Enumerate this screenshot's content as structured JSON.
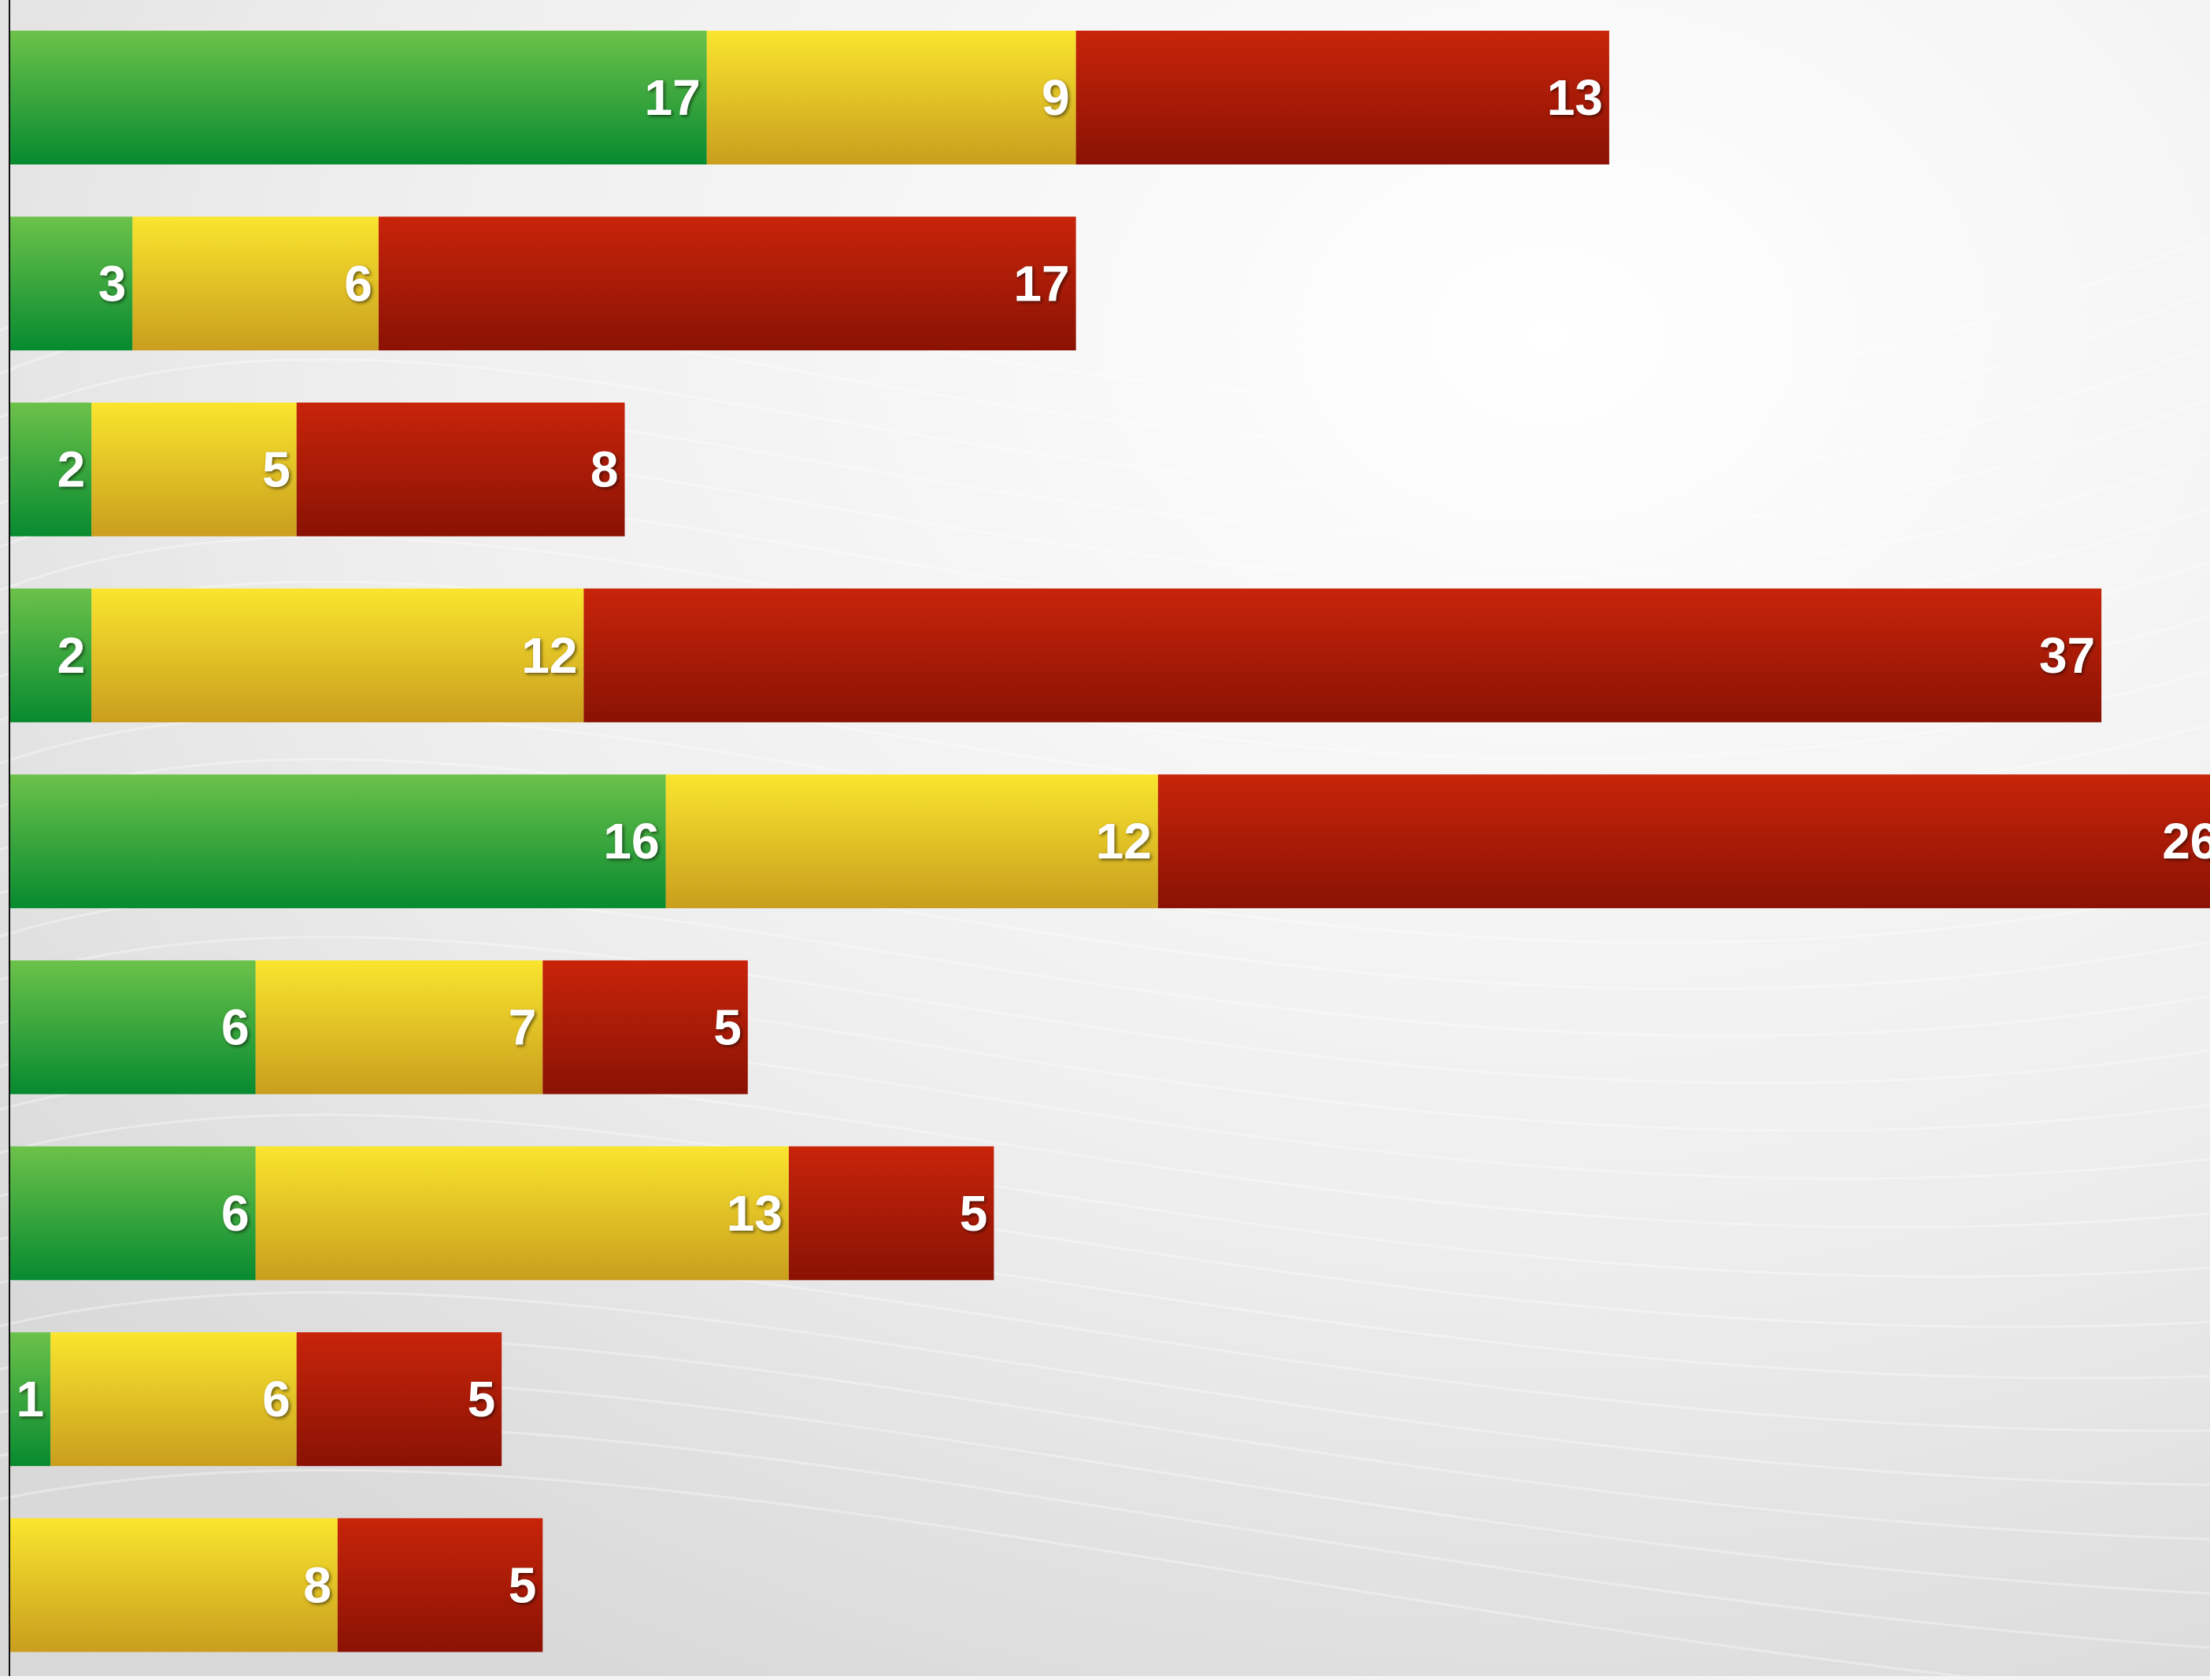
{
  "chart_data": {
    "type": "bar",
    "orientation": "horizontal",
    "stacked": true,
    "title": "",
    "xlabel": "",
    "ylabel": "",
    "xlim": [
      0,
      54
    ],
    "rows": 9,
    "series": [
      {
        "color": "#2e9e37",
        "values": [
          17,
          3,
          2,
          2,
          16,
          6,
          6,
          1,
          0
        ]
      },
      {
        "color": "#e8c51f",
        "values": [
          9,
          6,
          5,
          12,
          12,
          7,
          13,
          6,
          8
        ]
      },
      {
        "color": "#b51a06",
        "values": [
          13,
          17,
          8,
          37,
          26,
          5,
          5,
          5,
          5
        ]
      }
    ],
    "grid": false,
    "legend": "none",
    "data_labels": true
  }
}
